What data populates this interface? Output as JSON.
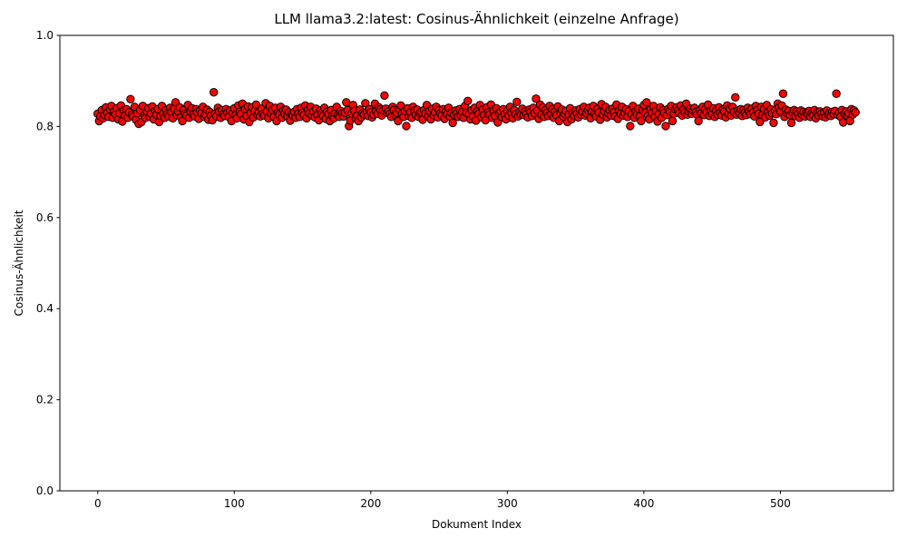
{
  "chart_data": {
    "type": "scatter",
    "title": "LLM llama3.2:latest: Cosinus-Ähnlichkeit (einzelne Anfrage)",
    "x_label": "Dokument Index",
    "y_label": "Cosinus-Ähnlichkeit",
    "color": "#ff0000",
    "edge_color": "#000000",
    "xlim": [
      -27.75,
      582.75
    ],
    "xticks": [
      0,
      100,
      200,
      300,
      400,
      500
    ],
    "ylim": [
      0,
      1
    ],
    "yticks": [
      {
        "value": 0,
        "label": "0.0"
      },
      0.2,
      0.4,
      0.6,
      0.8,
      {
        "value": 1,
        "label": "1.0"
      }
    ],
    "x": [
      0,
      1,
      2,
      3,
      4,
      5,
      6,
      7,
      8,
      9,
      10,
      11,
      12,
      13,
      14,
      15,
      16,
      17,
      18,
      19,
      20,
      21,
      22,
      23,
      24,
      25,
      26,
      27,
      28,
      29,
      30,
      31,
      32,
      33,
      34,
      35,
      36,
      37,
      38,
      39,
      40,
      41,
      42,
      43,
      44,
      45,
      46,
      47,
      48,
      49,
      50,
      51,
      52,
      53,
      54,
      55,
      56,
      57,
      58,
      59,
      60,
      61,
      62,
      63,
      64,
      65,
      66,
      67,
      68,
      69,
      70,
      71,
      72,
      73,
      74,
      75,
      76,
      77,
      78,
      79,
      80,
      81,
      82,
      83,
      84,
      85,
      86,
      87,
      88,
      89,
      90,
      91,
      92,
      93,
      94,
      95,
      96,
      97,
      98,
      99,
      100,
      101,
      102,
      103,
      104,
      105,
      106,
      107,
      108,
      109,
      110,
      111,
      112,
      113,
      114,
      115,
      116,
      117,
      118,
      119,
      120,
      121,
      122,
      123,
      124,
      125,
      126,
      127,
      128,
      129,
      130,
      131,
      132,
      133,
      134,
      135,
      136,
      137,
      138,
      139,
      140,
      141,
      142,
      143,
      144,
      145,
      146,
      147,
      148,
      149,
      150,
      151,
      152,
      153,
      154,
      155,
      156,
      157,
      158,
      159,
      160,
      161,
      162,
      163,
      164,
      165,
      166,
      167,
      168,
      169,
      170,
      171,
      172,
      173,
      174,
      175,
      176,
      177,
      178,
      179,
      180,
      181,
      182,
      183,
      184,
      185,
      186,
      187,
      188,
      189,
      190,
      191,
      192,
      193,
      194,
      195,
      196,
      197,
      198,
      199,
      200,
      201,
      202,
      203,
      204,
      205,
      206,
      207,
      208,
      209,
      210,
      211,
      212,
      213,
      214,
      215,
      216,
      217,
      218,
      219,
      220,
      221,
      222,
      223,
      224,
      225,
      226,
      227,
      228,
      229,
      230,
      231,
      232,
      233,
      234,
      235,
      236,
      237,
      238,
      239,
      240,
      241,
      242,
      243,
      244,
      245,
      246,
      247,
      248,
      249,
      250,
      251,
      252,
      253,
      254,
      255,
      256,
      257,
      258,
      259,
      260,
      261,
      262,
      263,
      264,
      265,
      266,
      267,
      268,
      269,
      270,
      271,
      272,
      273,
      274,
      275,
      276,
      277,
      278,
      279,
      280,
      281,
      282,
      283,
      284,
      285,
      286,
      287,
      288,
      289,
      290,
      291,
      292,
      293,
      294,
      295,
      296,
      297,
      298,
      299,
      300,
      301,
      302,
      303,
      304,
      305,
      306,
      307,
      308,
      309,
      310,
      311,
      312,
      313,
      314,
      315,
      316,
      317,
      318,
      319,
      320,
      321,
      322,
      323,
      324,
      325,
      326,
      327,
      328,
      329,
      330,
      331,
      332,
      333,
      334,
      335,
      336,
      337,
      338,
      339,
      340,
      341,
      342,
      343,
      344,
      345,
      346,
      347,
      348,
      349,
      350,
      351,
      352,
      353,
      354,
      355,
      356,
      357,
      358,
      359,
      360,
      361,
      362,
      363,
      364,
      365,
      366,
      367,
      368,
      369,
      370,
      371,
      372,
      373,
      374,
      375,
      376,
      377,
      378,
      379,
      380,
      381,
      382,
      383,
      384,
      385,
      386,
      387,
      388,
      389,
      390,
      391,
      392,
      393,
      394,
      395,
      396,
      397,
      398,
      399,
      400,
      401,
      402,
      403,
      404,
      405,
      406,
      407,
      408,
      409,
      410,
      411,
      412,
      413,
      414,
      415,
      416,
      417,
      418,
      419,
      420,
      421,
      422,
      423,
      424,
      425,
      426,
      427,
      428,
      429,
      430,
      431,
      432,
      433,
      434,
      435,
      436,
      437,
      438,
      439,
      440,
      441,
      442,
      443,
      444,
      445,
      446,
      447,
      448,
      449,
      450,
      451,
      452,
      453,
      454,
      455,
      456,
      457,
      458,
      459,
      460,
      461,
      462,
      463,
      464,
      465,
      466,
      467,
      468,
      469,
      470,
      471,
      472,
      473,
      474,
      475,
      476,
      477,
      478,
      479,
      480,
      481,
      482,
      483,
      484,
      485,
      486,
      487,
      488,
      489,
      490,
      491,
      492,
      493,
      494,
      495,
      496,
      497,
      498,
      499,
      500,
      501,
      502,
      503,
      504,
      505,
      506,
      507,
      508,
      509,
      510,
      511,
      512,
      513,
      514,
      515,
      516,
      517,
      518,
      519,
      520,
      521,
      522,
      523,
      524,
      525,
      526,
      527,
      528,
      529,
      530,
      531,
      532,
      533,
      534,
      535,
      536,
      537,
      538,
      539,
      540,
      541,
      542,
      543,
      544,
      545,
      546,
      547,
      548,
      549,
      550,
      551,
      552,
      553,
      554,
      555
    ],
    "values": [
      0.828,
      0.812,
      0.822,
      0.836,
      0.818,
      0.825,
      0.842,
      0.83,
      0.821,
      0.838,
      0.845,
      0.819,
      0.833,
      0.827,
      0.84,
      0.816,
      0.829,
      0.846,
      0.811,
      0.835,
      0.824,
      0.838,
      0.819,
      0.831,
      0.86,
      0.826,
      0.822,
      0.843,
      0.815,
      0.829,
      0.806,
      0.836,
      0.81,
      0.845,
      0.824,
      0.819,
      0.832,
      0.84,
      0.821,
      0.828,
      0.844,
      0.816,
      0.834,
      0.826,
      0.838,
      0.81,
      0.823,
      0.845,
      0.829,
      0.819,
      0.836,
      0.827,
      0.822,
      0.841,
      0.831,
      0.818,
      0.839,
      0.853,
      0.825,
      0.833,
      0.842,
      0.82,
      0.812,
      0.836,
      0.828,
      0.824,
      0.847,
      0.819,
      0.833,
      0.84,
      0.826,
      0.822,
      0.838,
      0.831,
      0.817,
      0.835,
      0.829,
      0.843,
      0.821,
      0.826,
      0.837,
      0.815,
      0.832,
      0.824,
      0.814,
      0.875,
      0.828,
      0.822,
      0.841,
      0.833,
      0.819,
      0.836,
      0.827,
      0.823,
      0.838,
      0.83,
      0.821,
      0.835,
      0.812,
      0.829,
      0.84,
      0.825,
      0.818,
      0.846,
      0.832,
      0.827,
      0.85,
      0.816,
      0.838,
      0.823,
      0.844,
      0.81,
      0.829,
      0.842,
      0.82,
      0.834,
      0.848,
      0.826,
      0.831,
      0.822,
      0.839,
      0.827,
      0.824,
      0.851,
      0.833,
      0.818,
      0.845,
      0.829,
      0.836,
      0.821,
      0.841,
      0.812,
      0.83,
      0.826,
      0.843,
      0.819,
      0.835,
      0.828,
      0.837,
      0.822,
      0.831,
      0.813,
      0.827,
      0.824,
      0.832,
      0.819,
      0.838,
      0.828,
      0.821,
      0.841,
      0.83,
      0.825,
      0.846,
      0.818,
      0.836,
      0.829,
      0.843,
      0.824,
      0.833,
      0.82,
      0.839,
      0.826,
      0.814,
      0.835,
      0.829,
      0.823,
      0.841,
      0.817,
      0.832,
      0.827,
      0.812,
      0.836,
      0.822,
      0.818,
      0.829,
      0.843,
      0.825,
      0.821,
      0.834,
      0.828,
      0.822,
      0.83,
      0.853,
      0.836,
      0.801,
      0.813,
      0.828,
      0.847,
      0.834,
      0.818,
      0.824,
      0.812,
      0.837,
      0.82,
      0.829,
      0.826,
      0.851,
      0.832,
      0.823,
      0.838,
      0.831,
      0.82,
      0.826,
      0.85,
      0.833,
      0.828,
      0.842,
      0.837,
      0.824,
      0.835,
      0.868,
      0.839,
      0.83,
      0.833,
      0.827,
      0.821,
      0.843,
      0.836,
      0.825,
      0.83,
      0.812,
      0.838,
      0.846,
      0.828,
      0.821,
      0.834,
      0.801,
      0.84,
      0.823,
      0.831,
      0.819,
      0.843,
      0.835,
      0.826,
      0.837,
      0.821,
      0.829,
      0.832,
      0.815,
      0.836,
      0.828,
      0.847,
      0.822,
      0.834,
      0.816,
      0.839,
      0.825,
      0.831,
      0.843,
      0.82,
      0.836,
      0.829,
      0.824,
      0.838,
      0.817,
      0.833,
      0.827,
      0.841,
      0.822,
      0.83,
      0.808,
      0.826,
      0.835,
      0.829,
      0.821,
      0.838,
      0.824,
      0.832,
      0.819,
      0.845,
      0.83,
      0.856,
      0.827,
      0.816,
      0.836,
      0.822,
      0.841,
      0.813,
      0.833,
      0.828,
      0.847,
      0.82,
      0.837,
      0.825,
      0.814,
      0.842,
      0.831,
      0.826,
      0.848,
      0.819,
      0.835,
      0.823,
      0.84,
      0.809,
      0.829,
      0.833,
      0.821,
      0.838,
      0.827,
      0.816,
      0.834,
      0.824,
      0.843,
      0.83,
      0.818,
      0.836,
      0.827,
      0.854,
      0.822,
      0.831,
      0.826,
      0.839,
      0.825,
      0.833,
      0.828,
      0.82,
      0.837,
      0.832,
      0.823,
      0.841,
      0.829,
      0.861,
      0.835,
      0.817,
      0.848,
      0.826,
      0.842,
      0.821,
      0.836,
      0.83,
      0.823,
      0.845,
      0.827,
      0.838,
      0.819,
      0.833,
      0.825,
      0.844,
      0.812,
      0.83,
      0.837,
      0.822,
      0.828,
      0.834,
      0.81,
      0.826,
      0.84,
      0.816,
      0.831,
      0.823,
      0.835,
      0.828,
      0.82,
      0.838,
      0.826,
      0.832,
      0.843,
      0.824,
      0.829,
      0.836,
      0.841,
      0.818,
      0.833,
      0.845,
      0.827,
      0.822,
      0.838,
      0.831,
      0.815,
      0.849,
      0.826,
      0.834,
      0.843,
      0.82,
      0.829,
      0.836,
      0.824,
      0.839,
      0.831,
      0.822,
      0.848,
      0.817,
      0.835,
      0.828,
      0.843,
      0.824,
      0.83,
      0.838,
      0.821,
      0.834,
      0.801,
      0.827,
      0.845,
      0.819,
      0.833,
      0.826,
      0.839,
      0.822,
      0.812,
      0.836,
      0.847,
      0.83,
      0.853,
      0.824,
      0.816,
      0.838,
      0.829,
      0.845,
      0.821,
      0.834,
      0.811,
      0.827,
      0.842,
      0.819,
      0.836,
      0.83,
      0.801,
      0.825,
      0.839,
      0.833,
      0.845,
      0.812,
      0.828,
      0.838,
      0.842,
      0.835,
      0.829,
      0.846,
      0.824,
      0.837,
      0.831,
      0.85,
      0.826,
      0.833,
      0.839,
      0.828,
      0.835,
      0.841,
      0.832,
      0.826,
      0.812,
      0.836,
      0.829,
      0.843,
      0.825,
      0.838,
      0.831,
      0.848,
      0.823,
      0.834,
      0.828,
      0.84,
      0.821,
      0.835,
      0.826,
      0.842,
      0.83,
      0.824,
      0.837,
      0.833,
      0.82,
      0.846,
      0.828,
      0.839,
      0.824,
      0.843,
      0.832,
      0.864,
      0.826,
      0.835,
      0.829,
      0.838,
      0.823,
      0.836,
      0.83,
      0.825,
      0.841,
      0.833,
      0.827,
      0.839,
      0.831,
      0.822,
      0.845,
      0.836,
      0.828,
      0.81,
      0.843,
      0.826,
      0.839,
      0.82,
      0.847,
      0.832,
      0.824,
      0.838,
      0.829,
      0.808,
      0.835,
      0.827,
      0.85,
      0.842,
      0.833,
      0.846,
      0.872,
      0.821,
      0.837,
      0.829,
      0.834,
      0.825,
      0.808,
      0.831,
      0.836,
      0.823,
      0.833,
      0.828,
      0.819,
      0.835,
      0.826,
      0.832,
      0.822,
      0.83,
      0.827,
      0.834,
      0.821,
      0.829,
      0.825,
      0.836,
      0.818,
      0.831,
      0.824,
      0.833,
      0.828,
      0.822,
      0.83,
      0.82,
      0.835,
      0.826,
      0.829,
      0.823,
      0.832,
      0.827,
      0.834,
      0.872,
      0.825,
      0.83,
      0.821,
      0.836,
      0.809,
      0.828,
      0.833,
      0.824,
      0.829,
      0.812,
      0.838,
      0.826,
      0.835,
      0.831
    ]
  }
}
